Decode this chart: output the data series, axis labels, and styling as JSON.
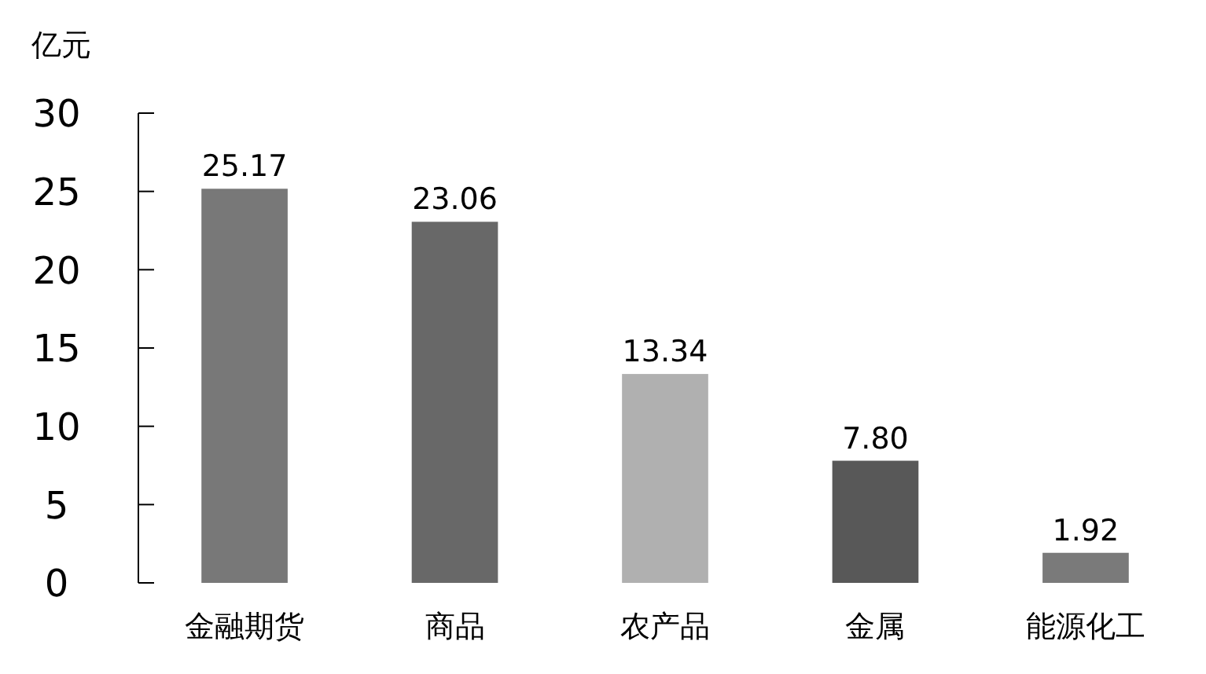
{
  "chart_data": {
    "type": "bar",
    "ylabel": "亿元",
    "categories": [
      "金融期货",
      "商品",
      "农产品",
      "金属",
      "能源化工"
    ],
    "values": [
      25.17,
      23.06,
      13.34,
      7.8,
      1.92
    ],
    "colors": [
      "#787878",
      "#686868",
      "#b0b0b0",
      "#585858",
      "#7a7a7a"
    ],
    "value_labels": [
      "25.17",
      "23.06",
      "13.34",
      "7.80",
      "1.92"
    ],
    "ylim": [
      0,
      30
    ],
    "yticks": [
      0,
      5,
      10,
      15,
      20,
      25,
      30
    ],
    "grid": false
  }
}
